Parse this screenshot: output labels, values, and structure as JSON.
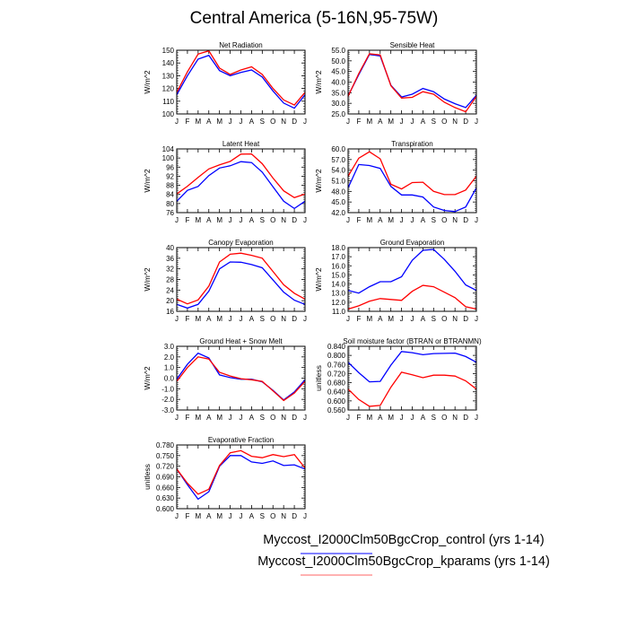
{
  "title": "Central America (5-16N,95-75W)",
  "legend": [
    {
      "label": "Myccost_I2000Clm50BgcCrop_control (yrs 1-14)",
      "color": "#0000ff"
    },
    {
      "label": "Myccost_I2000Clm50BgcCrop_kparams (yrs 1-14)",
      "color": "#ff0000"
    }
  ],
  "chart_data": [
    {
      "type": "line",
      "title": "Net Radiation",
      "ylabel": "W/m^2",
      "ylim": [
        100,
        150
      ],
      "yticks": [
        "100",
        "110",
        "120",
        "130",
        "140",
        "150"
      ],
      "categories": [
        "J",
        "F",
        "M",
        "A",
        "M",
        "J",
        "J",
        "A",
        "S",
        "O",
        "N",
        "D",
        "J"
      ],
      "series": [
        {
          "name": "control",
          "values": [
            115,
            130,
            143,
            146,
            134,
            130,
            132.5,
            134.5,
            129,
            118,
            108.5,
            104.5,
            115
          ]
        },
        {
          "name": "kparams",
          "values": [
            117,
            133,
            147,
            149.5,
            136,
            131,
            134.5,
            137,
            131,
            120,
            111,
            107,
            117
          ]
        }
      ]
    },
    {
      "type": "line",
      "title": "Sensible Heat",
      "ylabel": "W/m^2",
      "ylim": [
        25,
        55
      ],
      "yticks": [
        "25.0",
        "30.0",
        "35.0",
        "40.0",
        "45.0",
        "50.0",
        "55.0"
      ],
      "categories": [
        "J",
        "F",
        "M",
        "A",
        "M",
        "J",
        "J",
        "A",
        "S",
        "O",
        "N",
        "D",
        "J"
      ],
      "series": [
        {
          "name": "control",
          "values": [
            33.5,
            43.5,
            53,
            52.3,
            38.5,
            33,
            34.3,
            37,
            35.5,
            32,
            29.8,
            28,
            33.8
          ]
        },
        {
          "name": "kparams",
          "values": [
            33.3,
            44,
            53.3,
            52.8,
            38.3,
            32.5,
            32.8,
            35.5,
            34.3,
            30.5,
            28,
            26,
            33.3
          ]
        }
      ]
    },
    {
      "type": "line",
      "title": "Latent Heat",
      "ylabel": "W/m^2",
      "ylim": [
        76,
        104
      ],
      "yticks": [
        "76",
        "80",
        "84",
        "88",
        "92",
        "96",
        "100",
        "104"
      ],
      "categories": [
        "J",
        "F",
        "M",
        "A",
        "M",
        "J",
        "J",
        "A",
        "S",
        "O",
        "N",
        "D",
        "J"
      ],
      "series": [
        {
          "name": "control",
          "values": [
            81,
            85.8,
            87.5,
            92.3,
            95.6,
            96.6,
            98.4,
            98,
            93.8,
            87.3,
            81,
            77.8,
            81
          ]
        },
        {
          "name": "kparams",
          "values": [
            84.2,
            87.6,
            91.5,
            95.2,
            97,
            98.5,
            101.7,
            101.8,
            97.5,
            91.2,
            85.6,
            82.6,
            84.2
          ]
        }
      ]
    },
    {
      "type": "line",
      "title": "Transpiration",
      "ylabel": "W/m^2",
      "ylim": [
        42,
        60
      ],
      "yticks": [
        "42.0",
        "45.0",
        "48.0",
        "51.0",
        "54.0",
        "57.0",
        "60.0"
      ],
      "categories": [
        "J",
        "F",
        "M",
        "A",
        "M",
        "J",
        "J",
        "A",
        "S",
        "O",
        "N",
        "D",
        "J"
      ],
      "series": [
        {
          "name": "control",
          "values": [
            49,
            55.6,
            55.3,
            54.5,
            49.4,
            47,
            47,
            46.4,
            43.6,
            42.6,
            42.3,
            43.6,
            49
          ]
        },
        {
          "name": "kparams",
          "values": [
            52.3,
            57.4,
            59.2,
            57.2,
            50,
            48.7,
            50.5,
            50.6,
            48,
            47.1,
            47.1,
            48.4,
            52.3
          ]
        }
      ]
    },
    {
      "type": "line",
      "title": "Canopy Evaporation",
      "ylabel": "W/m^2",
      "ylim": [
        16,
        40
      ],
      "yticks": [
        "16",
        "20",
        "24",
        "28",
        "32",
        "36",
        "40"
      ],
      "categories": [
        "J",
        "F",
        "M",
        "A",
        "M",
        "J",
        "J",
        "A",
        "S",
        "O",
        "N",
        "D",
        "J"
      ],
      "series": [
        {
          "name": "control",
          "values": [
            18.6,
            17.2,
            18.6,
            23.6,
            32,
            34.6,
            34.5,
            33.6,
            32.4,
            27.8,
            23.2,
            20.2,
            18.6
          ]
        },
        {
          "name": "kparams",
          "values": [
            20.6,
            18.8,
            20.3,
            25.5,
            34.6,
            37.5,
            37.9,
            37.1,
            36,
            31,
            26,
            22.8,
            20.6
          ]
        }
      ]
    },
    {
      "type": "line",
      "title": "Ground Evaporation",
      "ylabel": "W/m^2",
      "ylim": [
        11,
        18
      ],
      "yticks": [
        "11.0",
        "12.0",
        "13.0",
        "14.0",
        "15.0",
        "16.0",
        "17.0",
        "18.0"
      ],
      "categories": [
        "J",
        "F",
        "M",
        "A",
        "M",
        "J",
        "J",
        "A",
        "S",
        "O",
        "N",
        "D",
        "J"
      ],
      "series": [
        {
          "name": "control",
          "values": [
            13.3,
            13,
            13.7,
            14.25,
            14.25,
            14.8,
            16.6,
            17.7,
            17.8,
            16.7,
            15.4,
            13.9,
            13.3
          ]
        },
        {
          "name": "kparams",
          "values": [
            11.25,
            11.6,
            12.1,
            12.4,
            12.3,
            12.2,
            13.2,
            13.85,
            13.7,
            13.1,
            12.5,
            11.5,
            11.25
          ]
        }
      ]
    },
    {
      "type": "line",
      "title": "Ground Heat + Snow Melt",
      "ylabel": "W/m^2",
      "ylim": [
        -3,
        3
      ],
      "yticks": [
        "-3.0",
        "-2.0",
        "-1.0",
        "0.0",
        "1.0",
        "2.0",
        "3.0"
      ],
      "categories": [
        "J",
        "F",
        "M",
        "A",
        "M",
        "J",
        "J",
        "A",
        "S",
        "O",
        "N",
        "D",
        "J"
      ],
      "series": [
        {
          "name": "control",
          "values": [
            -0.1,
            1.3,
            2.35,
            1.9,
            0.3,
            0.05,
            -0.1,
            -0.1,
            -0.35,
            -1.15,
            -2.05,
            -1.3,
            -0.15
          ]
        },
        {
          "name": "kparams",
          "values": [
            -0.3,
            1.0,
            2.0,
            1.8,
            0.55,
            0.2,
            -0.05,
            -0.15,
            -0.3,
            -1.2,
            -2.1,
            -1.4,
            -0.3
          ]
        }
      ]
    },
    {
      "type": "line",
      "title": "Soil moisture factor (BTRAN or BTRANMN)",
      "ylabel": "unitless",
      "ylim": [
        0.56,
        0.84
      ],
      "yticks": [
        "0.560",
        "0.600",
        "0.640",
        "0.680",
        "0.720",
        "0.760",
        "0.800",
        "0.840"
      ],
      "categories": [
        "J",
        "F",
        "M",
        "A",
        "M",
        "J",
        "J",
        "A",
        "S",
        "O",
        "N",
        "D",
        "J"
      ],
      "series": [
        {
          "name": "control",
          "values": [
            0.77,
            0.724,
            0.684,
            0.686,
            0.757,
            0.817,
            0.812,
            0.803,
            0.808,
            0.809,
            0.81,
            0.795,
            0.77
          ]
        },
        {
          "name": "kparams",
          "values": [
            0.652,
            0.606,
            0.576,
            0.58,
            0.66,
            0.726,
            0.715,
            0.702,
            0.713,
            0.713,
            0.709,
            0.688,
            0.652
          ]
        }
      ]
    },
    {
      "type": "line",
      "title": "Evaporative Fraction",
      "ylabel": "unitless",
      "ylim": [
        0.6,
        0.78
      ],
      "yticks": [
        "0.600",
        "0.630",
        "0.660",
        "0.690",
        "0.720",
        "0.750",
        "0.780"
      ],
      "categories": [
        "J",
        "F",
        "M",
        "A",
        "M",
        "J",
        "J",
        "A",
        "S",
        "O",
        "N",
        "D",
        "J"
      ],
      "series": [
        {
          "name": "control",
          "values": [
            0.712,
            0.668,
            0.627,
            0.648,
            0.72,
            0.75,
            0.75,
            0.732,
            0.728,
            0.735,
            0.722,
            0.724,
            0.712
          ]
        },
        {
          "name": "kparams",
          "values": [
            0.712,
            0.672,
            0.641,
            0.655,
            0.722,
            0.758,
            0.764,
            0.748,
            0.744,
            0.753,
            0.747,
            0.753,
            0.715
          ]
        }
      ]
    }
  ]
}
